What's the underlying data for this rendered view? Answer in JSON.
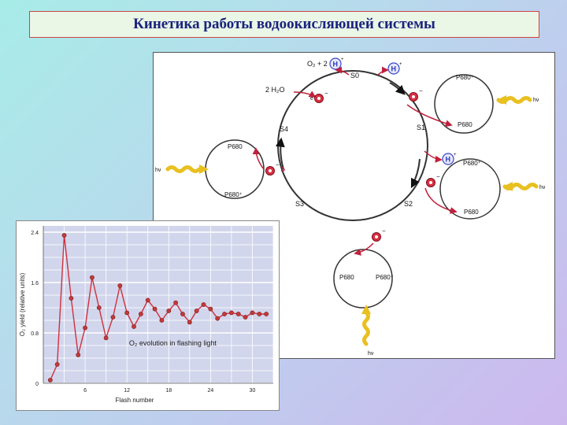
{
  "title": "Кинетика работы водоокисляющей системы",
  "diagram": {
    "states": [
      "S0",
      "S1",
      "S2",
      "S3",
      "S4"
    ],
    "o2_release": "O₂ + 2",
    "water": "2 H₂O",
    "proton": "H",
    "proton_sup": "+",
    "electron": "e",
    "electron_sup": "−",
    "p680_oxidized": "P680⁺",
    "p680": "P680",
    "light": "hν"
  },
  "chart_data": {
    "type": "line",
    "title": "O₂ evolution in flashing light",
    "xlabel": "Flash number",
    "ylabel": "O₂ yield (relative units)",
    "xticks": [
      6,
      12,
      18,
      24,
      30
    ],
    "yticks": [
      0,
      0.8,
      1.6,
      2.4
    ],
    "xlim": [
      0,
      33
    ],
    "ylim": [
      0,
      2.5
    ],
    "x": [
      1,
      2,
      3,
      4,
      5,
      6,
      7,
      8,
      9,
      10,
      11,
      12,
      13,
      14,
      15,
      16,
      17,
      18,
      19,
      20,
      21,
      22,
      23,
      24,
      25,
      26,
      27,
      28,
      29,
      30,
      31,
      32
    ],
    "values": [
      0.05,
      0.3,
      2.35,
      1.35,
      0.45,
      0.88,
      1.68,
      1.2,
      0.72,
      1.05,
      1.55,
      1.12,
      0.9,
      1.1,
      1.32,
      1.18,
      1.0,
      1.15,
      1.28,
      1.1,
      0.97,
      1.15,
      1.25,
      1.18,
      1.03,
      1.1,
      1.12,
      1.1,
      1.05,
      1.12,
      1.1,
      1.1
    ],
    "grid": true,
    "line_color": "#d0303c",
    "marker_color": "#c43a3a",
    "plot_background": "#d2d6ec"
  }
}
